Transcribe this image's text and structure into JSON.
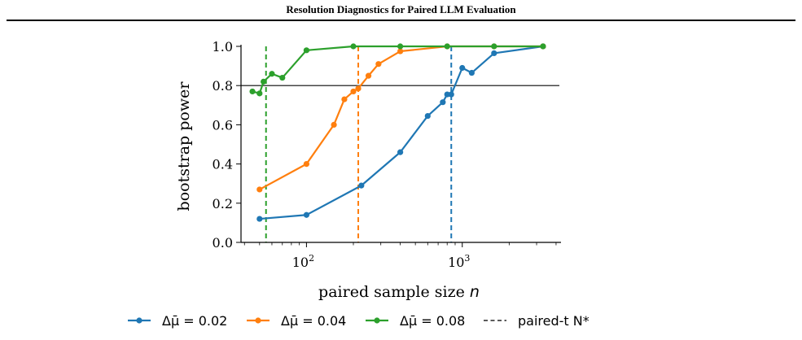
{
  "header": {
    "title": "Resolution Diagnostics for Paired LLM Evaluation"
  },
  "chart_data": {
    "type": "line",
    "title": "",
    "xlabel": "paired sample size n",
    "ylabel": "bootstrap power",
    "xscale": "log",
    "xlim": [
      38,
      4200
    ],
    "ylim": [
      0.0,
      1.0
    ],
    "x_ticks": [
      {
        "value": 100,
        "label": "10^2"
      },
      {
        "value": 1000,
        "label": "10^3"
      }
    ],
    "y_ticks": [
      0.0,
      0.2,
      0.4,
      0.6,
      0.8,
      1.0
    ],
    "y_tick_labels": [
      "0.0",
      "0.2",
      "0.4",
      "0.6",
      "0.8",
      "1.0"
    ],
    "reference_line": {
      "y": 0.8,
      "color": "#444444"
    },
    "grid": false,
    "legend_position": "bottom",
    "series": [
      {
        "name": "Δμ̄ = 0.02",
        "color": "#1f77b4",
        "x": [
          50,
          100,
          225,
          400,
          600,
          750,
          800,
          850,
          1000,
          1150,
          1600,
          3300
        ],
        "y": [
          0.12,
          0.14,
          0.29,
          0.46,
          0.645,
          0.715,
          0.755,
          0.755,
          0.89,
          0.865,
          0.965,
          1.0
        ],
        "paired_t_N": 850
      },
      {
        "name": "Δμ̄ = 0.04",
        "color": "#ff7f0e",
        "x": [
          50,
          100,
          150,
          175,
          200,
          215,
          250,
          290,
          400,
          800,
          1600,
          3300
        ],
        "y": [
          0.27,
          0.4,
          0.6,
          0.73,
          0.77,
          0.785,
          0.85,
          0.91,
          0.975,
          1.0,
          1.0,
          1.0
        ],
        "paired_t_N": 215
      },
      {
        "name": "Δμ̄ = 0.08",
        "color": "#2ca02c",
        "x": [
          45,
          50,
          53,
          60,
          70,
          100,
          200,
          400,
          800,
          1600,
          3300
        ],
        "y": [
          0.77,
          0.76,
          0.82,
          0.86,
          0.84,
          0.98,
          1.0,
          1.0,
          1.0,
          1.0,
          1.0
        ],
        "paired_t_N": 55
      }
    ],
    "legend": [
      {
        "label": "Δμ̄ = 0.02",
        "color": "#1f77b4",
        "style": "line-marker"
      },
      {
        "label": "Δμ̄ = 0.04",
        "color": "#ff7f0e",
        "style": "line-marker"
      },
      {
        "label": "Δμ̄ = 0.08",
        "color": "#2ca02c",
        "style": "line-marker"
      },
      {
        "label": "paired-t N*",
        "color": "#444444",
        "style": "dashed"
      }
    ]
  }
}
